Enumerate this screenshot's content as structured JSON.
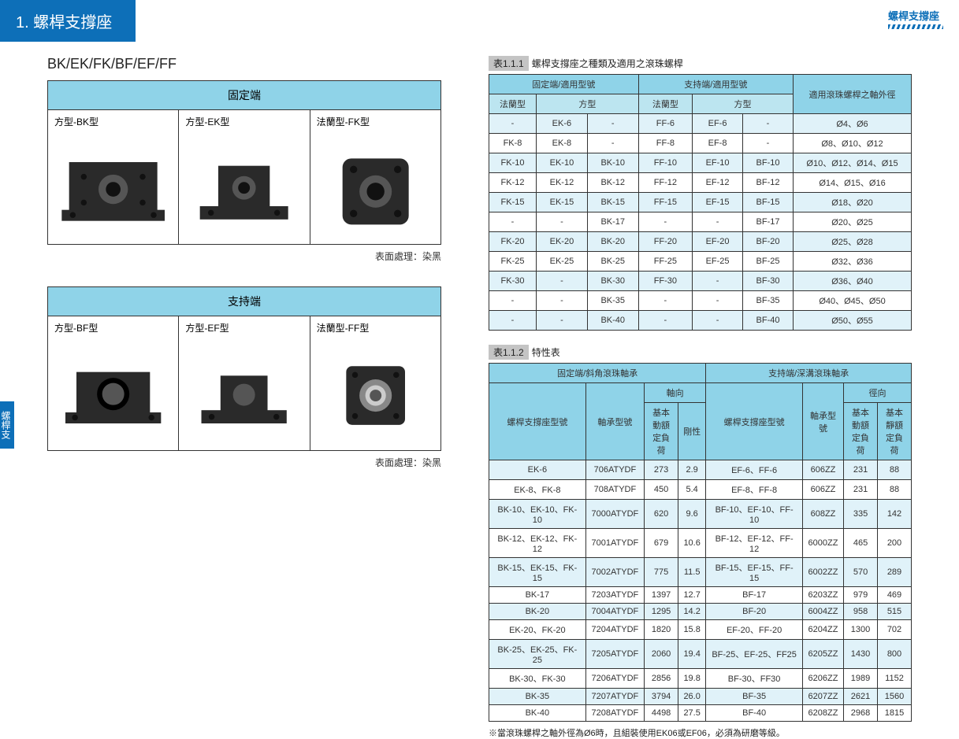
{
  "header": {
    "title": "1. 螺桿支撐座",
    "top_right": "螺桿支撐座",
    "side_tab": "螺桿支撐座"
  },
  "subtitle": "BK/EK/FK/BF/EF/FF",
  "surface_note": "表面處理：染黑",
  "boxes": {
    "fixed": {
      "header": "固定端",
      "items": [
        "方型-BK型",
        "方型-EK型",
        "法蘭型-FK型"
      ]
    },
    "support": {
      "header": "支持端",
      "items": [
        "方型-BF型",
        "方型-EF型",
        "法蘭型-FF型"
      ]
    }
  },
  "table1": {
    "caption_num": "表1.1.1",
    "caption_text": "螺桿支撐座之種類及適用之滾珠螺桿",
    "head1": {
      "fixed": "固定端/適用型號",
      "support": "支持端/適用型號",
      "dia": "適用滾珠螺桿之軸外徑"
    },
    "head2": {
      "a": "法蘭型",
      "b": "方型",
      "c": "法蘭型",
      "d": "方型"
    },
    "rows": [
      [
        "-",
        "EK-6",
        "-",
        "FF-6",
        "EF-6",
        "-",
        "Ø4、Ø6"
      ],
      [
        "FK-8",
        "EK-8",
        "-",
        "FF-8",
        "EF-8",
        "-",
        "Ø8、Ø10、Ø12"
      ],
      [
        "FK-10",
        "EK-10",
        "BK-10",
        "FF-10",
        "EF-10",
        "BF-10",
        "Ø10、Ø12、Ø14、Ø15"
      ],
      [
        "FK-12",
        "EK-12",
        "BK-12",
        "FF-12",
        "EF-12",
        "BF-12",
        "Ø14、Ø15、Ø16"
      ],
      [
        "FK-15",
        "EK-15",
        "BK-15",
        "FF-15",
        "EF-15",
        "BF-15",
        "Ø18、Ø20"
      ],
      [
        "-",
        "-",
        "BK-17",
        "-",
        "-",
        "BF-17",
        "Ø20、Ø25"
      ],
      [
        "FK-20",
        "EK-20",
        "BK-20",
        "FF-20",
        "EF-20",
        "BF-20",
        "Ø25、Ø28"
      ],
      [
        "FK-25",
        "EK-25",
        "BK-25",
        "FF-25",
        "EF-25",
        "BF-25",
        "Ø32、Ø36"
      ],
      [
        "FK-30",
        "-",
        "BK-30",
        "FF-30",
        "-",
        "BF-30",
        "Ø36、Ø40"
      ],
      [
        "-",
        "-",
        "BK-35",
        "-",
        "-",
        "BF-35",
        "Ø40、Ø45、Ø50"
      ],
      [
        "-",
        "-",
        "BK-40",
        "-",
        "-",
        "BF-40",
        "Ø50、Ø55"
      ]
    ]
  },
  "table2": {
    "caption_num": "表1.1.2",
    "caption_text": "特性表",
    "head1": {
      "fixed": "固定端/斜角滾珠軸承",
      "support": "支持端/深溝滾珠軸承"
    },
    "head2": {
      "a": "螺桿支撐座型號",
      "b": "軸承型號",
      "c": "軸向",
      "d": "螺桿支撐座型號",
      "e": "軸承型號",
      "f": "徑向"
    },
    "head3": {
      "c1": "基本動額定負荷",
      "c2": "剛性",
      "f1": "基本動額定負荷",
      "f2": "基本靜額定負荷"
    },
    "rows": [
      [
        "EK-6",
        "706ATYDF",
        "273",
        "2.9",
        "EF-6、FF-6",
        "606ZZ",
        "231",
        "88"
      ],
      [
        "EK-8、FK-8",
        "708ATYDF",
        "450",
        "5.4",
        "EF-8、FF-8",
        "606ZZ",
        "231",
        "88"
      ],
      [
        "BK-10、EK-10、FK-10",
        "7000ATYDF",
        "620",
        "9.6",
        "BF-10、EF-10、FF-10",
        "608ZZ",
        "335",
        "142"
      ],
      [
        "BK-12、EK-12、FK-12",
        "7001ATYDF",
        "679",
        "10.6",
        "BF-12、EF-12、FF-12",
        "6000ZZ",
        "465",
        "200"
      ],
      [
        "BK-15、EK-15、FK-15",
        "7002ATYDF",
        "775",
        "11.5",
        "BF-15、EF-15、FF-15",
        "6002ZZ",
        "570",
        "289"
      ],
      [
        "BK-17",
        "7203ATYDF",
        "1397",
        "12.7",
        "BF-17",
        "6203ZZ",
        "979",
        "469"
      ],
      [
        "BK-20",
        "7004ATYDF",
        "1295",
        "14.2",
        "BF-20",
        "6004ZZ",
        "958",
        "515"
      ],
      [
        "EK-20、FK-20",
        "7204ATYDF",
        "1820",
        "15.8",
        "EF-20、FF-20",
        "6204ZZ",
        "1300",
        "702"
      ],
      [
        "BK-25、EK-25、FK-25",
        "7205ATYDF",
        "2060",
        "19.4",
        "BF-25、EF-25、FF25",
        "6205ZZ",
        "1430",
        "800"
      ],
      [
        "BK-30、FK-30",
        "7206ATYDF",
        "2856",
        "19.8",
        "BF-30、FF30",
        "6206ZZ",
        "1989",
        "1152"
      ],
      [
        "BK-35",
        "7207ATYDF",
        "3794",
        "26.0",
        "BF-35",
        "6207ZZ",
        "2621",
        "1560"
      ],
      [
        "BK-40",
        "7208ATYDF",
        "4498",
        "27.5",
        "BF-40",
        "6208ZZ",
        "2968",
        "1815"
      ]
    ]
  },
  "bottom_note": "※當滾珠螺桿之軸外徑為Ø6時，且組裝使用EK06或EF06，必須為研磨等級。",
  "colors": {
    "primary": "#0d6fb8",
    "th_bg": "#8fd3e8",
    "alt_bg": "#e0f2f9",
    "part": "#2a2a2a",
    "hole": "#555"
  }
}
